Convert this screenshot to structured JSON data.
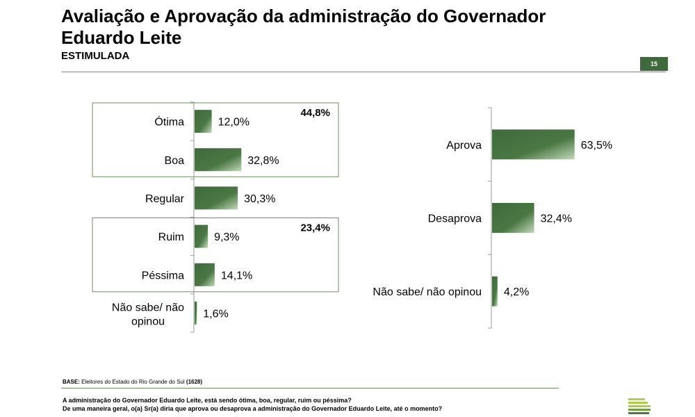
{
  "header": {
    "title": "Avaliação e Aprovação da administração do Governador Eduardo Leite",
    "subtitle": "ESTIMULADA",
    "page_number": "15"
  },
  "chart_data": [
    {
      "type": "bar",
      "orientation": "horizontal",
      "categories": [
        "Ótima",
        "Boa",
        "Regular",
        "Ruim",
        "Péssima",
        "Não sabe/ não opinou"
      ],
      "values": [
        12.0,
        32.8,
        30.3,
        9.3,
        14.1,
        1.6
      ],
      "value_labels": [
        "12,0%",
        "32,8%",
        "30,3%",
        "9,3%",
        "14,1%",
        "1,6%"
      ],
      "groups": [
        {
          "label": "44,8%",
          "members": [
            "Ótima",
            "Boa"
          ]
        },
        {
          "label": "23,4%",
          "members": [
            "Ruim",
            "Péssima"
          ]
        }
      ],
      "grid": false,
      "legend": "none",
      "bar_color": "#3f6b3c"
    },
    {
      "type": "bar",
      "orientation": "horizontal",
      "categories": [
        "Aprova",
        "Desaprova",
        "Não sabe/ não opinou"
      ],
      "values": [
        63.5,
        32.4,
        4.2
      ],
      "value_labels": [
        "63,5%",
        "32,4%",
        "4,2%"
      ],
      "grid": false,
      "legend": "none",
      "bar_color": "#3f6b3c"
    }
  ],
  "footer": {
    "base_label": "BASE:",
    "base_text": "Eleitores do Estado do Rio Grande do Sul",
    "base_n": "(1628)",
    "question1": "A administração do Governador Eduardo Leite, está sendo ótima, boa, regular, ruim ou péssima?",
    "question2": "De uma maneira geral, o(a) Sr(a) diria que aprova ou desaprova a administração do Governador Eduardo Leite, até o momento?"
  }
}
